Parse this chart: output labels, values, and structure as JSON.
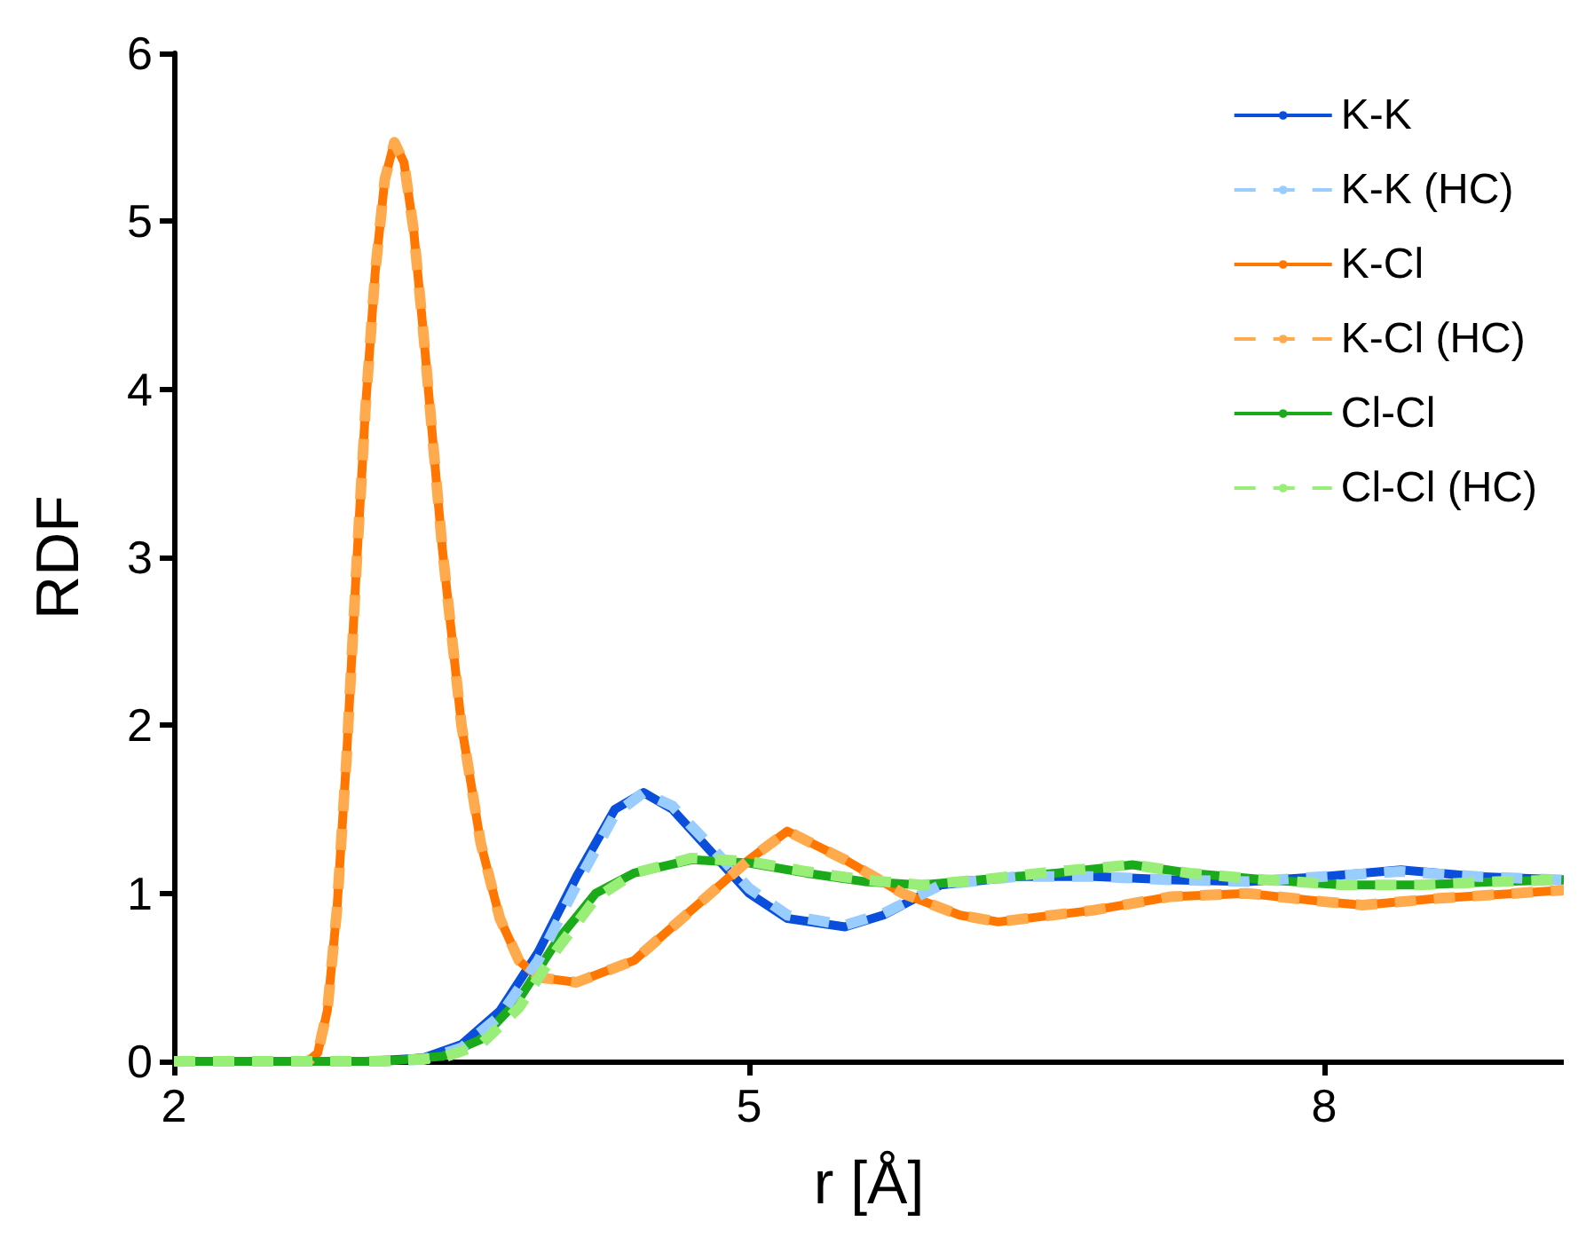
{
  "chart_data": {
    "type": "line",
    "xlabel": "r [Å]",
    "ylabel": "RDF",
    "xlim": [
      2,
      9.25
    ],
    "xticks": [
      2,
      5,
      8
    ],
    "ylim": [
      0,
      6
    ],
    "yticks": [
      0,
      1,
      2,
      3,
      4,
      5,
      6
    ],
    "grid": false,
    "legend": "top right",
    "marker": "none",
    "series": [
      {
        "name": "K-K",
        "color": "#0a4fdc",
        "line_style": "solid",
        "x": [
          2,
          3.0,
          3.3,
          3.5,
          3.7,
          3.9,
          4.1,
          4.3,
          4.45,
          4.6,
          4.8,
          5.0,
          5.2,
          5.5,
          5.7,
          6.0,
          6.4,
          6.8,
          7.2,
          7.6,
          8.0,
          8.4,
          8.8,
          9.25
        ],
        "values": [
          0,
          0,
          0.02,
          0.1,
          0.3,
          0.65,
          1.1,
          1.5,
          1.6,
          1.5,
          1.25,
          1.0,
          0.85,
          0.8,
          0.87,
          1.05,
          1.1,
          1.1,
          1.08,
          1.07,
          1.1,
          1.14,
          1.1,
          1.08
        ]
      },
      {
        "name": "K-K (HC)",
        "color": "#99ccff",
        "line_style": "dashed",
        "x": [
          2,
          3.0,
          3.3,
          3.5,
          3.7,
          3.9,
          4.1,
          4.3,
          4.45,
          4.6,
          4.8,
          5.0,
          5.2,
          5.5,
          5.7,
          6.0,
          6.4,
          6.8,
          7.2,
          7.6,
          8.0,
          8.4,
          8.8,
          9.25
        ],
        "values": [
          0,
          0,
          0.01,
          0.08,
          0.27,
          0.6,
          1.05,
          1.47,
          1.6,
          1.52,
          1.28,
          1.03,
          0.87,
          0.81,
          0.88,
          1.05,
          1.1,
          1.1,
          1.08,
          1.07,
          1.1,
          1.13,
          1.1,
          1.08
        ]
      },
      {
        "name": "K-Cl",
        "color": "#ff7700",
        "line_style": "solid",
        "x": [
          2,
          2.7,
          2.75,
          2.8,
          2.85,
          2.9,
          2.95,
          3.0,
          3.05,
          3.1,
          3.15,
          3.2,
          3.25,
          3.3,
          3.35,
          3.4,
          3.5,
          3.6,
          3.7,
          3.8,
          3.9,
          4.1,
          4.4,
          4.7,
          5.0,
          5.2,
          5.5,
          5.8,
          6.1,
          6.3,
          6.8,
          7.2,
          7.6,
          8.0,
          8.2,
          8.6,
          9.0,
          9.25
        ],
        "values": [
          0,
          0,
          0.05,
          0.3,
          0.9,
          1.8,
          2.9,
          3.9,
          4.7,
          5.25,
          5.47,
          5.35,
          4.95,
          4.35,
          3.7,
          3.05,
          2.0,
          1.3,
          0.85,
          0.6,
          0.5,
          0.47,
          0.6,
          0.9,
          1.2,
          1.37,
          1.2,
          1.0,
          0.87,
          0.83,
          0.9,
          0.98,
          1.0,
          0.95,
          0.93,
          0.97,
          1.0,
          1.02
        ]
      },
      {
        "name": "K-Cl (HC)",
        "color": "#ffaa4d",
        "line_style": "dashed",
        "x": [
          2,
          2.7,
          2.75,
          2.8,
          2.85,
          2.9,
          2.95,
          3.0,
          3.05,
          3.1,
          3.15,
          3.2,
          3.25,
          3.3,
          3.35,
          3.4,
          3.5,
          3.6,
          3.7,
          3.8,
          3.9,
          4.1,
          4.4,
          4.7,
          5.0,
          5.2,
          5.5,
          5.8,
          6.1,
          6.3,
          6.8,
          7.2,
          7.6,
          8.0,
          8.2,
          8.6,
          9.0,
          9.25
        ],
        "values": [
          0,
          0,
          0.05,
          0.3,
          0.9,
          1.8,
          2.9,
          3.9,
          4.7,
          5.25,
          5.47,
          5.35,
          4.95,
          4.35,
          3.7,
          3.05,
          2.0,
          1.3,
          0.85,
          0.6,
          0.5,
          0.47,
          0.6,
          0.9,
          1.2,
          1.37,
          1.2,
          1.0,
          0.87,
          0.83,
          0.9,
          0.98,
          1.0,
          0.95,
          0.93,
          0.97,
          1.0,
          1.02
        ]
      },
      {
        "name": "Cl-Cl",
        "color": "#1aaa1a",
        "line_style": "solid",
        "x": [
          2,
          3.1,
          3.4,
          3.6,
          3.8,
          4.0,
          4.2,
          4.4,
          4.7,
          5.0,
          5.3,
          5.6,
          5.9,
          6.2,
          6.6,
          7.0,
          7.3,
          7.7,
          8.1,
          8.5,
          8.9,
          9.25
        ],
        "values": [
          0,
          0,
          0.03,
          0.13,
          0.37,
          0.72,
          1.0,
          1.12,
          1.2,
          1.18,
          1.12,
          1.07,
          1.05,
          1.08,
          1.12,
          1.17,
          1.12,
          1.08,
          1.05,
          1.05,
          1.07,
          1.08
        ]
      },
      {
        "name": "Cl-Cl (HC)",
        "color": "#99ee77",
        "line_style": "dashed",
        "x": [
          2,
          3.1,
          3.4,
          3.6,
          3.8,
          4.0,
          4.2,
          4.4,
          4.7,
          5.0,
          5.3,
          5.6,
          5.9,
          6.2,
          6.6,
          7.0,
          7.3,
          7.7,
          8.1,
          8.5,
          8.9,
          9.25
        ],
        "values": [
          0,
          0,
          0.02,
          0.1,
          0.32,
          0.67,
          0.97,
          1.12,
          1.21,
          1.19,
          1.13,
          1.08,
          1.05,
          1.08,
          1.13,
          1.17,
          1.12,
          1.08,
          1.05,
          1.05,
          1.07,
          1.08
        ]
      }
    ]
  }
}
